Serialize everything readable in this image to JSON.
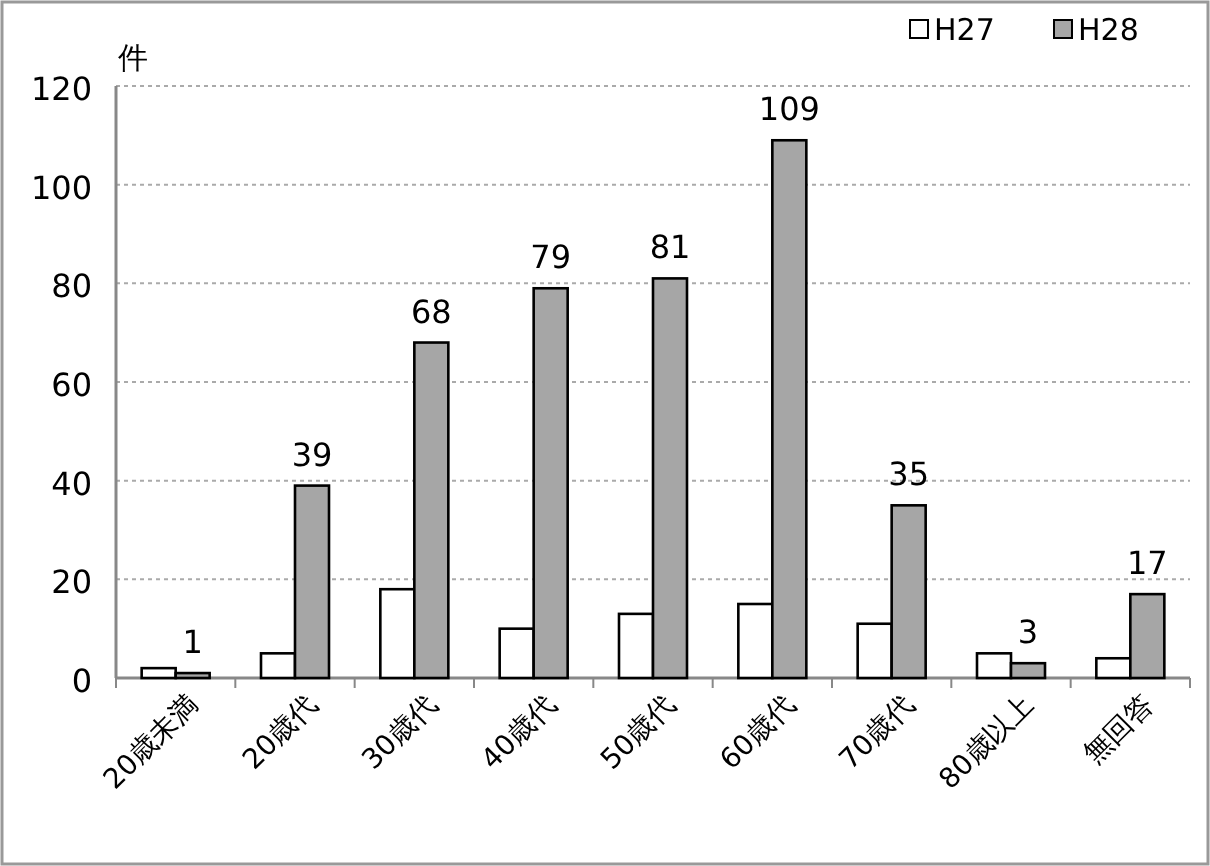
{
  "chart_data": {
    "type": "bar",
    "ylabel": "件",
    "categories": [
      "20歳未満",
      "20歳代",
      "30歳代",
      "40歳代",
      "50歳代",
      "60歳代",
      "70歳代",
      "80歳以上",
      "無回答"
    ],
    "series": [
      {
        "name": "H27",
        "color": "#ffffff",
        "values": [
          2,
          5,
          18,
          10,
          13,
          15,
          11,
          5,
          4
        ]
      },
      {
        "name": "H28",
        "color": "#a6a6a6",
        "values": [
          1,
          39,
          68,
          79,
          81,
          109,
          35,
          3,
          17
        ],
        "value_labels": [
          "1",
          "39",
          "68",
          "79",
          "81",
          "109",
          "35",
          "3",
          "17"
        ]
      }
    ],
    "ylim": [
      0,
      120
    ],
    "yticks": [
      0,
      20,
      40,
      60,
      80,
      100,
      120
    ],
    "grid": "y",
    "legend": "top right"
  }
}
